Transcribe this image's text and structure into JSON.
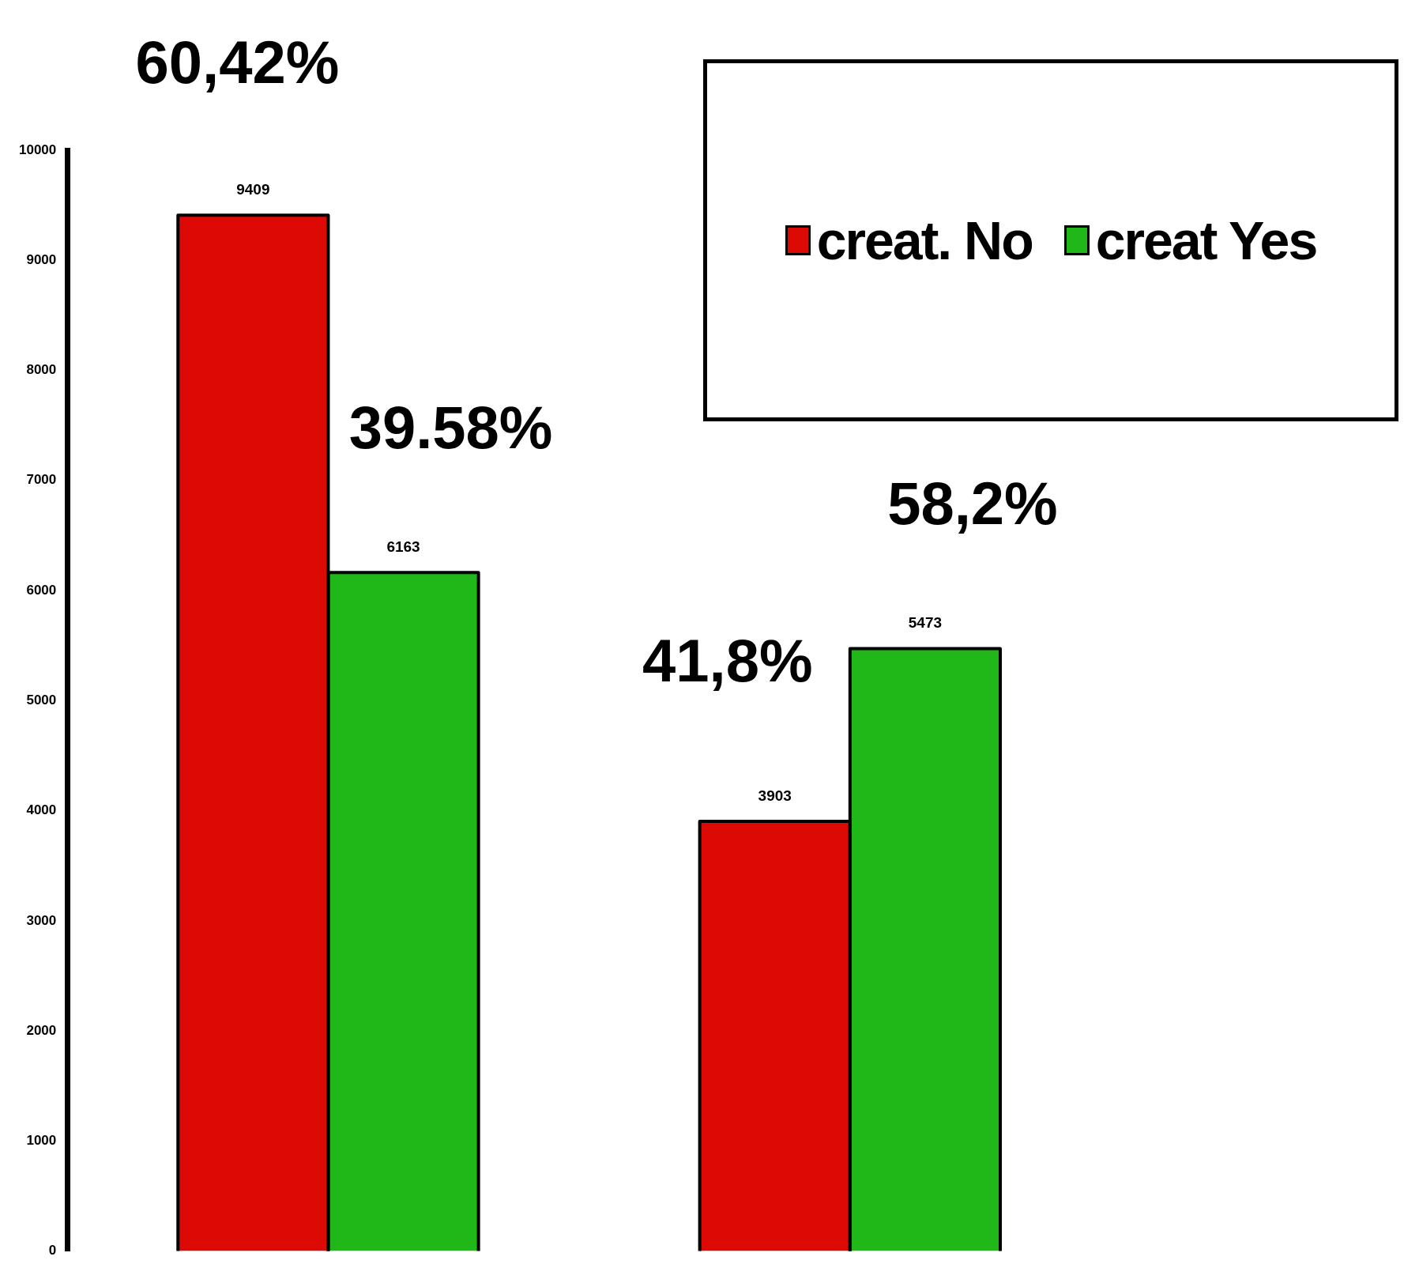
{
  "chart_data": {
    "type": "bar",
    "categories": [
      null,
      null
    ],
    "series": [
      {
        "name": "creat. No",
        "color": "#dc0905",
        "values": [
          9409,
          3903
        ]
      },
      {
        "name": "creat Yes",
        "color": "#20b718",
        "values": [
          6163,
          5473
        ]
      }
    ],
    "ylim": [
      0,
      10000
    ],
    "yticks": [
      0,
      1000,
      2000,
      3000,
      4000,
      5000,
      6000,
      7000,
      8000,
      9000,
      10000
    ],
    "grid": false,
    "legend": "top right",
    "data_labels": true,
    "annotations": [
      "60,42%",
      "39.58%",
      "41,8%",
      "58,2%"
    ]
  }
}
